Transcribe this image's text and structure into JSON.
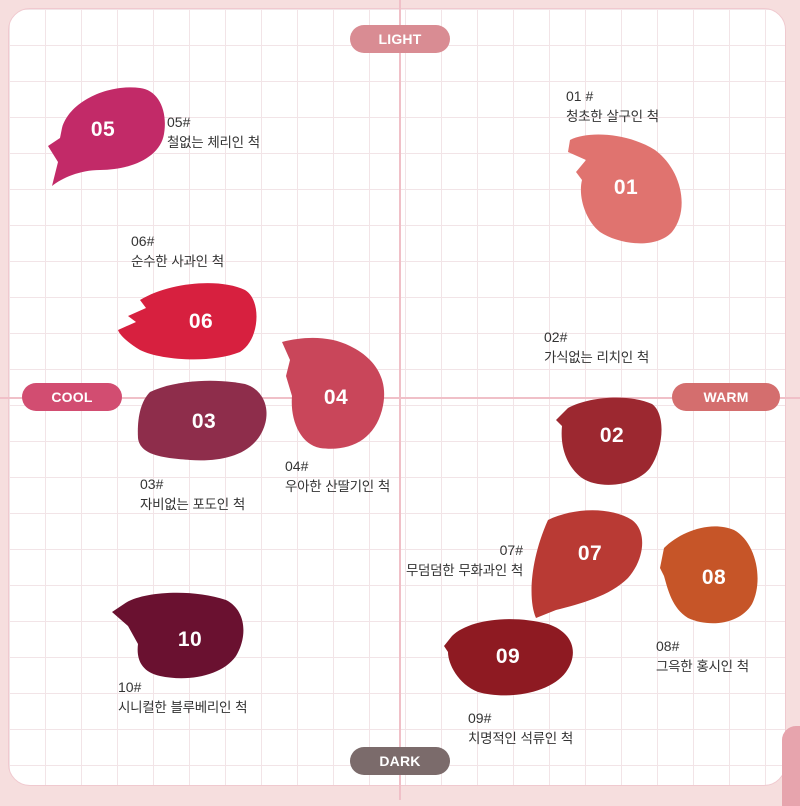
{
  "axes": {
    "top": "LIGHT",
    "bottom": "DARK",
    "left": "COOL",
    "right": "WARM"
  },
  "colors": {
    "light_pill": "#d98c93",
    "dark_pill": "#7b6b6b",
    "cool_pill": "#d24d71",
    "warm_pill": "#d46e6e",
    "swatch_01": "#e0736f",
    "swatch_02": "#9c2830",
    "swatch_03": "#8e2d4b",
    "swatch_04": "#c9465a",
    "swatch_05": "#c22a68",
    "swatch_06": "#d7203f",
    "swatch_07": "#b93a34",
    "swatch_08": "#c65528",
    "swatch_09": "#8e1a22",
    "swatch_10": "#6a1130"
  },
  "swatches": [
    {
      "num": "01",
      "code": "01 #",
      "name": "청초한 살구인 척"
    },
    {
      "num": "02",
      "code": "02#",
      "name": "가식없는 리치인 척"
    },
    {
      "num": "03",
      "code": "03#",
      "name": "자비없는 포도인 척"
    },
    {
      "num": "04",
      "code": "04#",
      "name": "우아한 산딸기인 척"
    },
    {
      "num": "05",
      "code": "05#",
      "name": "철없는 체리인 척"
    },
    {
      "num": "06",
      "code": "06#",
      "name": "순수한 사과인 척"
    },
    {
      "num": "07",
      "code": "07#",
      "name": "무덤덤한 무화과인 척"
    },
    {
      "num": "08",
      "code": "08#",
      "name": "그윽한 홍시인 척"
    },
    {
      "num": "09",
      "code": "09#",
      "name": "치명적인 석류인 척"
    },
    {
      "num": "10",
      "code": "10#",
      "name": "시니컬한 블루베리인 척"
    }
  ]
}
